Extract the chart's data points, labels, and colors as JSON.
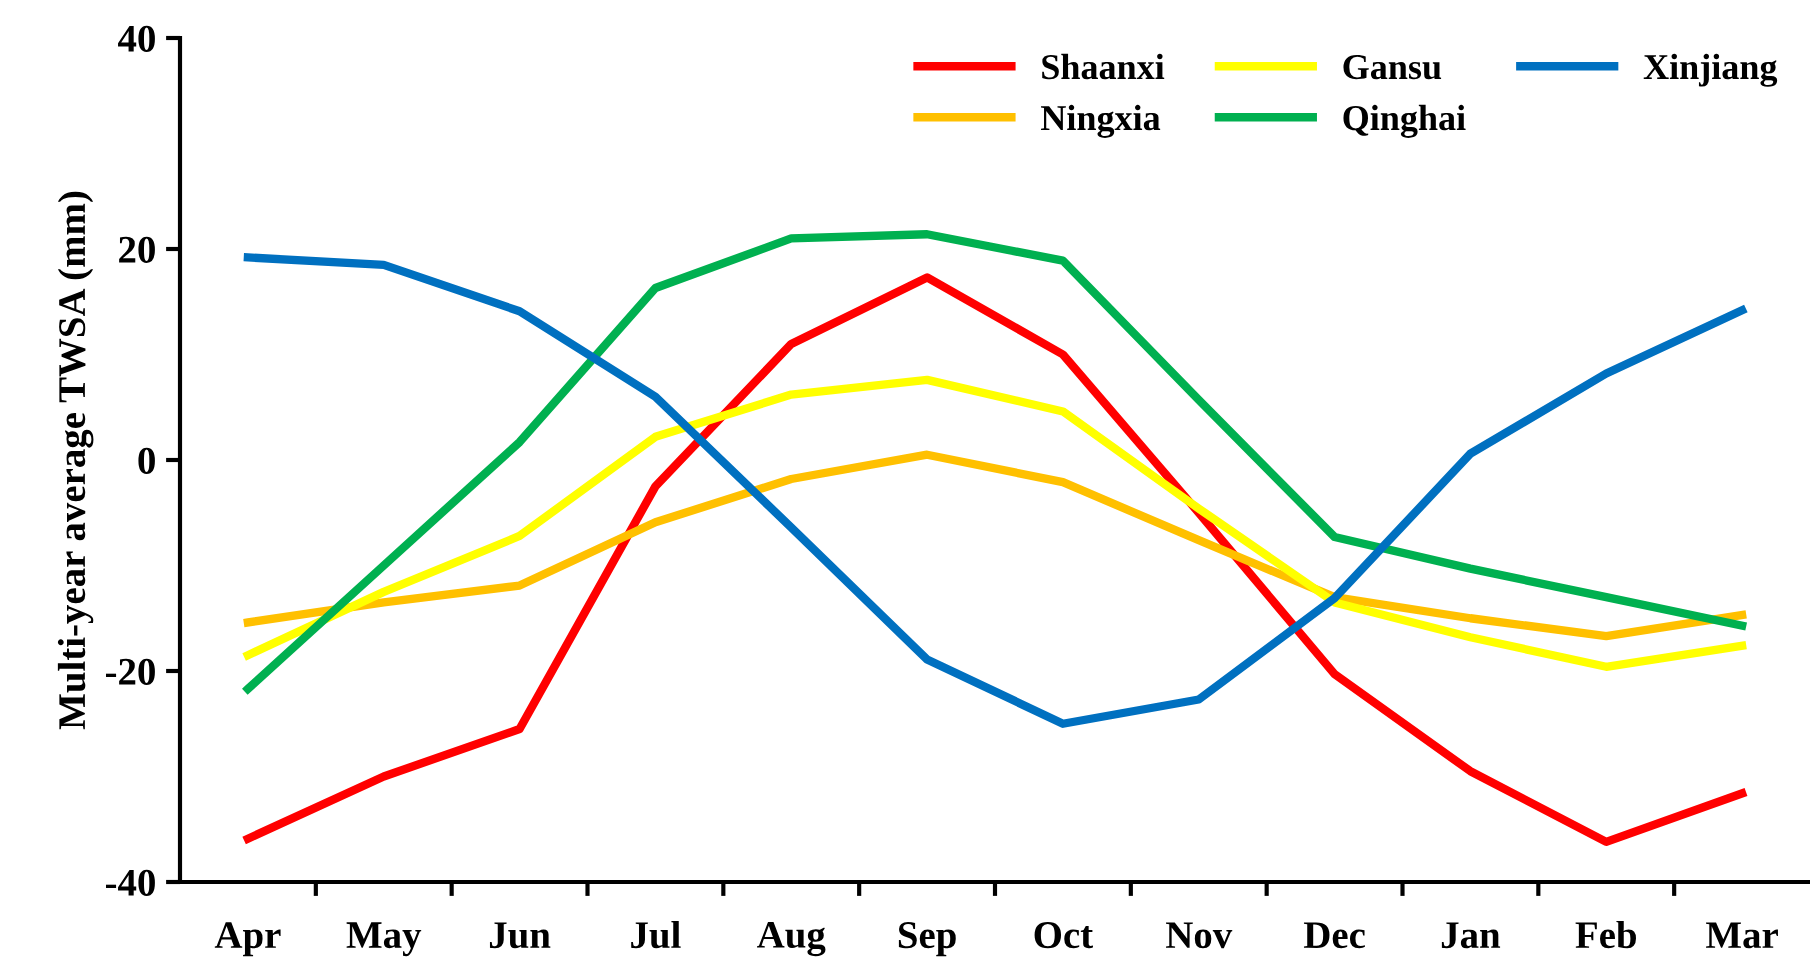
{
  "chart_data": {
    "type": "line",
    "ylabel": "Multi-year average TWSA (mm)",
    "categories": [
      "Apr",
      "May",
      "Jun",
      "Jul",
      "Aug",
      "Sep",
      "Oct",
      "Nov",
      "Dec",
      "Jan",
      "Feb",
      "Mar"
    ],
    "series": [
      {
        "name": "Shaanxi",
        "color": "#ff0000",
        "values": [
          -35.9,
          -30,
          -25.5,
          -2.5,
          11,
          17.3,
          10,
          -5,
          -20.3,
          -29.5,
          -36.2,
          -31.6
        ]
      },
      {
        "name": "Ningxia",
        "color": "#ffc000",
        "values": [
          -15.4,
          -13.5,
          -11.9,
          -5.9,
          -1.8,
          0.5,
          -2.1,
          -7.6,
          -13,
          -15,
          -16.7,
          -14.7
        ]
      },
      {
        "name": "Gansu",
        "color": "#ffff00",
        "values": [
          -18.5,
          -12.5,
          -7.2,
          2.2,
          6.2,
          7.6,
          4.6,
          -4.6,
          -13.5,
          -16.8,
          -19.6,
          -17.6
        ]
      },
      {
        "name": "Qinghai",
        "color": "#00b050",
        "values": [
          -21.7,
          -10,
          1.7,
          16.3,
          21,
          21.4,
          18.9,
          5.7,
          -7.3,
          -10.3,
          -13,
          -15.7
        ]
      },
      {
        "name": "Xinjiang",
        "color": "#0070c0",
        "values": [
          19.2,
          18.5,
          14.1,
          6,
          -6.4,
          -18.9,
          -25,
          -22.7,
          -13.1,
          0.6,
          8.2,
          14.2
        ]
      }
    ],
    "ylim": [
      -40,
      40
    ],
    "yticks": [
      -40,
      -20,
      0,
      20,
      40
    ],
    "grid": false,
    "legend": "top right",
    "marker": "none",
    "line_style": "solid"
  }
}
